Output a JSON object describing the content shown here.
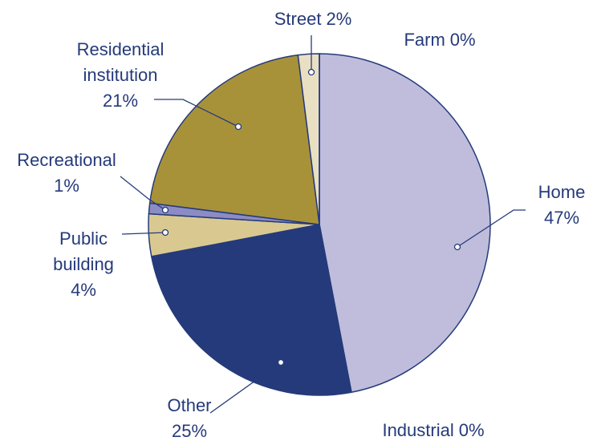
{
  "chart_data": {
    "type": "pie",
    "categories": [
      "Home",
      "Industrial",
      "Other",
      "Public building",
      "Recreational",
      "Residential institution",
      "Street",
      "Farm"
    ],
    "values": [
      47,
      0,
      25,
      4,
      1,
      21,
      2,
      0
    ],
    "value_labels": [
      "47%",
      "0%",
      "25%",
      "4%",
      "1%",
      "21%",
      "2%",
      "0%"
    ],
    "colors": [
      "#bfbddb",
      "#cfcfcf",
      "#253a7a",
      "#d9c991",
      "#8c8cc4",
      "#a89239",
      "#e9e0c3",
      "#cfcfcf"
    ]
  }
}
